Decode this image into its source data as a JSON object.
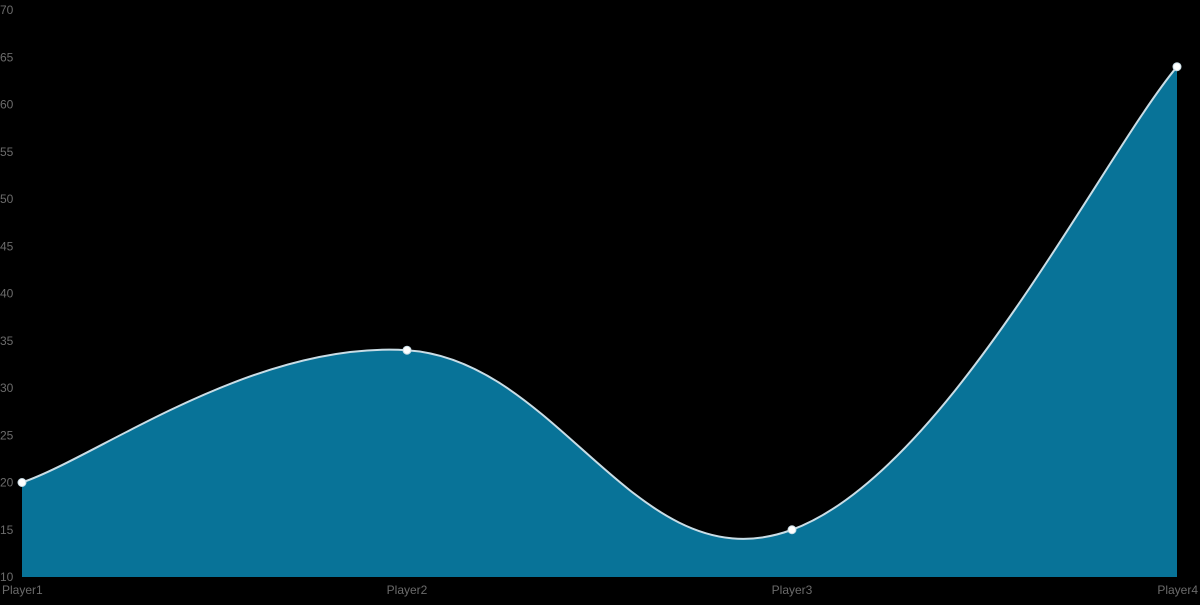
{
  "chart_data": {
    "type": "area",
    "categories": [
      "Player1",
      "Player2",
      "Player3",
      "Player4"
    ],
    "series": [
      {
        "values": [
          20,
          34,
          15,
          64
        ]
      }
    ],
    "ylim": [
      10,
      70
    ],
    "yticks": [
      "10",
      "15",
      "20",
      "25",
      "30",
      "35",
      "40",
      "45",
      "50",
      "55",
      "60",
      "65",
      "70"
    ],
    "xlabel": "",
    "ylabel": "",
    "title": "",
    "grid": false,
    "legend": "none",
    "colors": {
      "background": "#000000",
      "fill": "#087398",
      "line": "#c9dde6",
      "point": "#ffffff",
      "tick_text": "#6b6b6b"
    }
  }
}
